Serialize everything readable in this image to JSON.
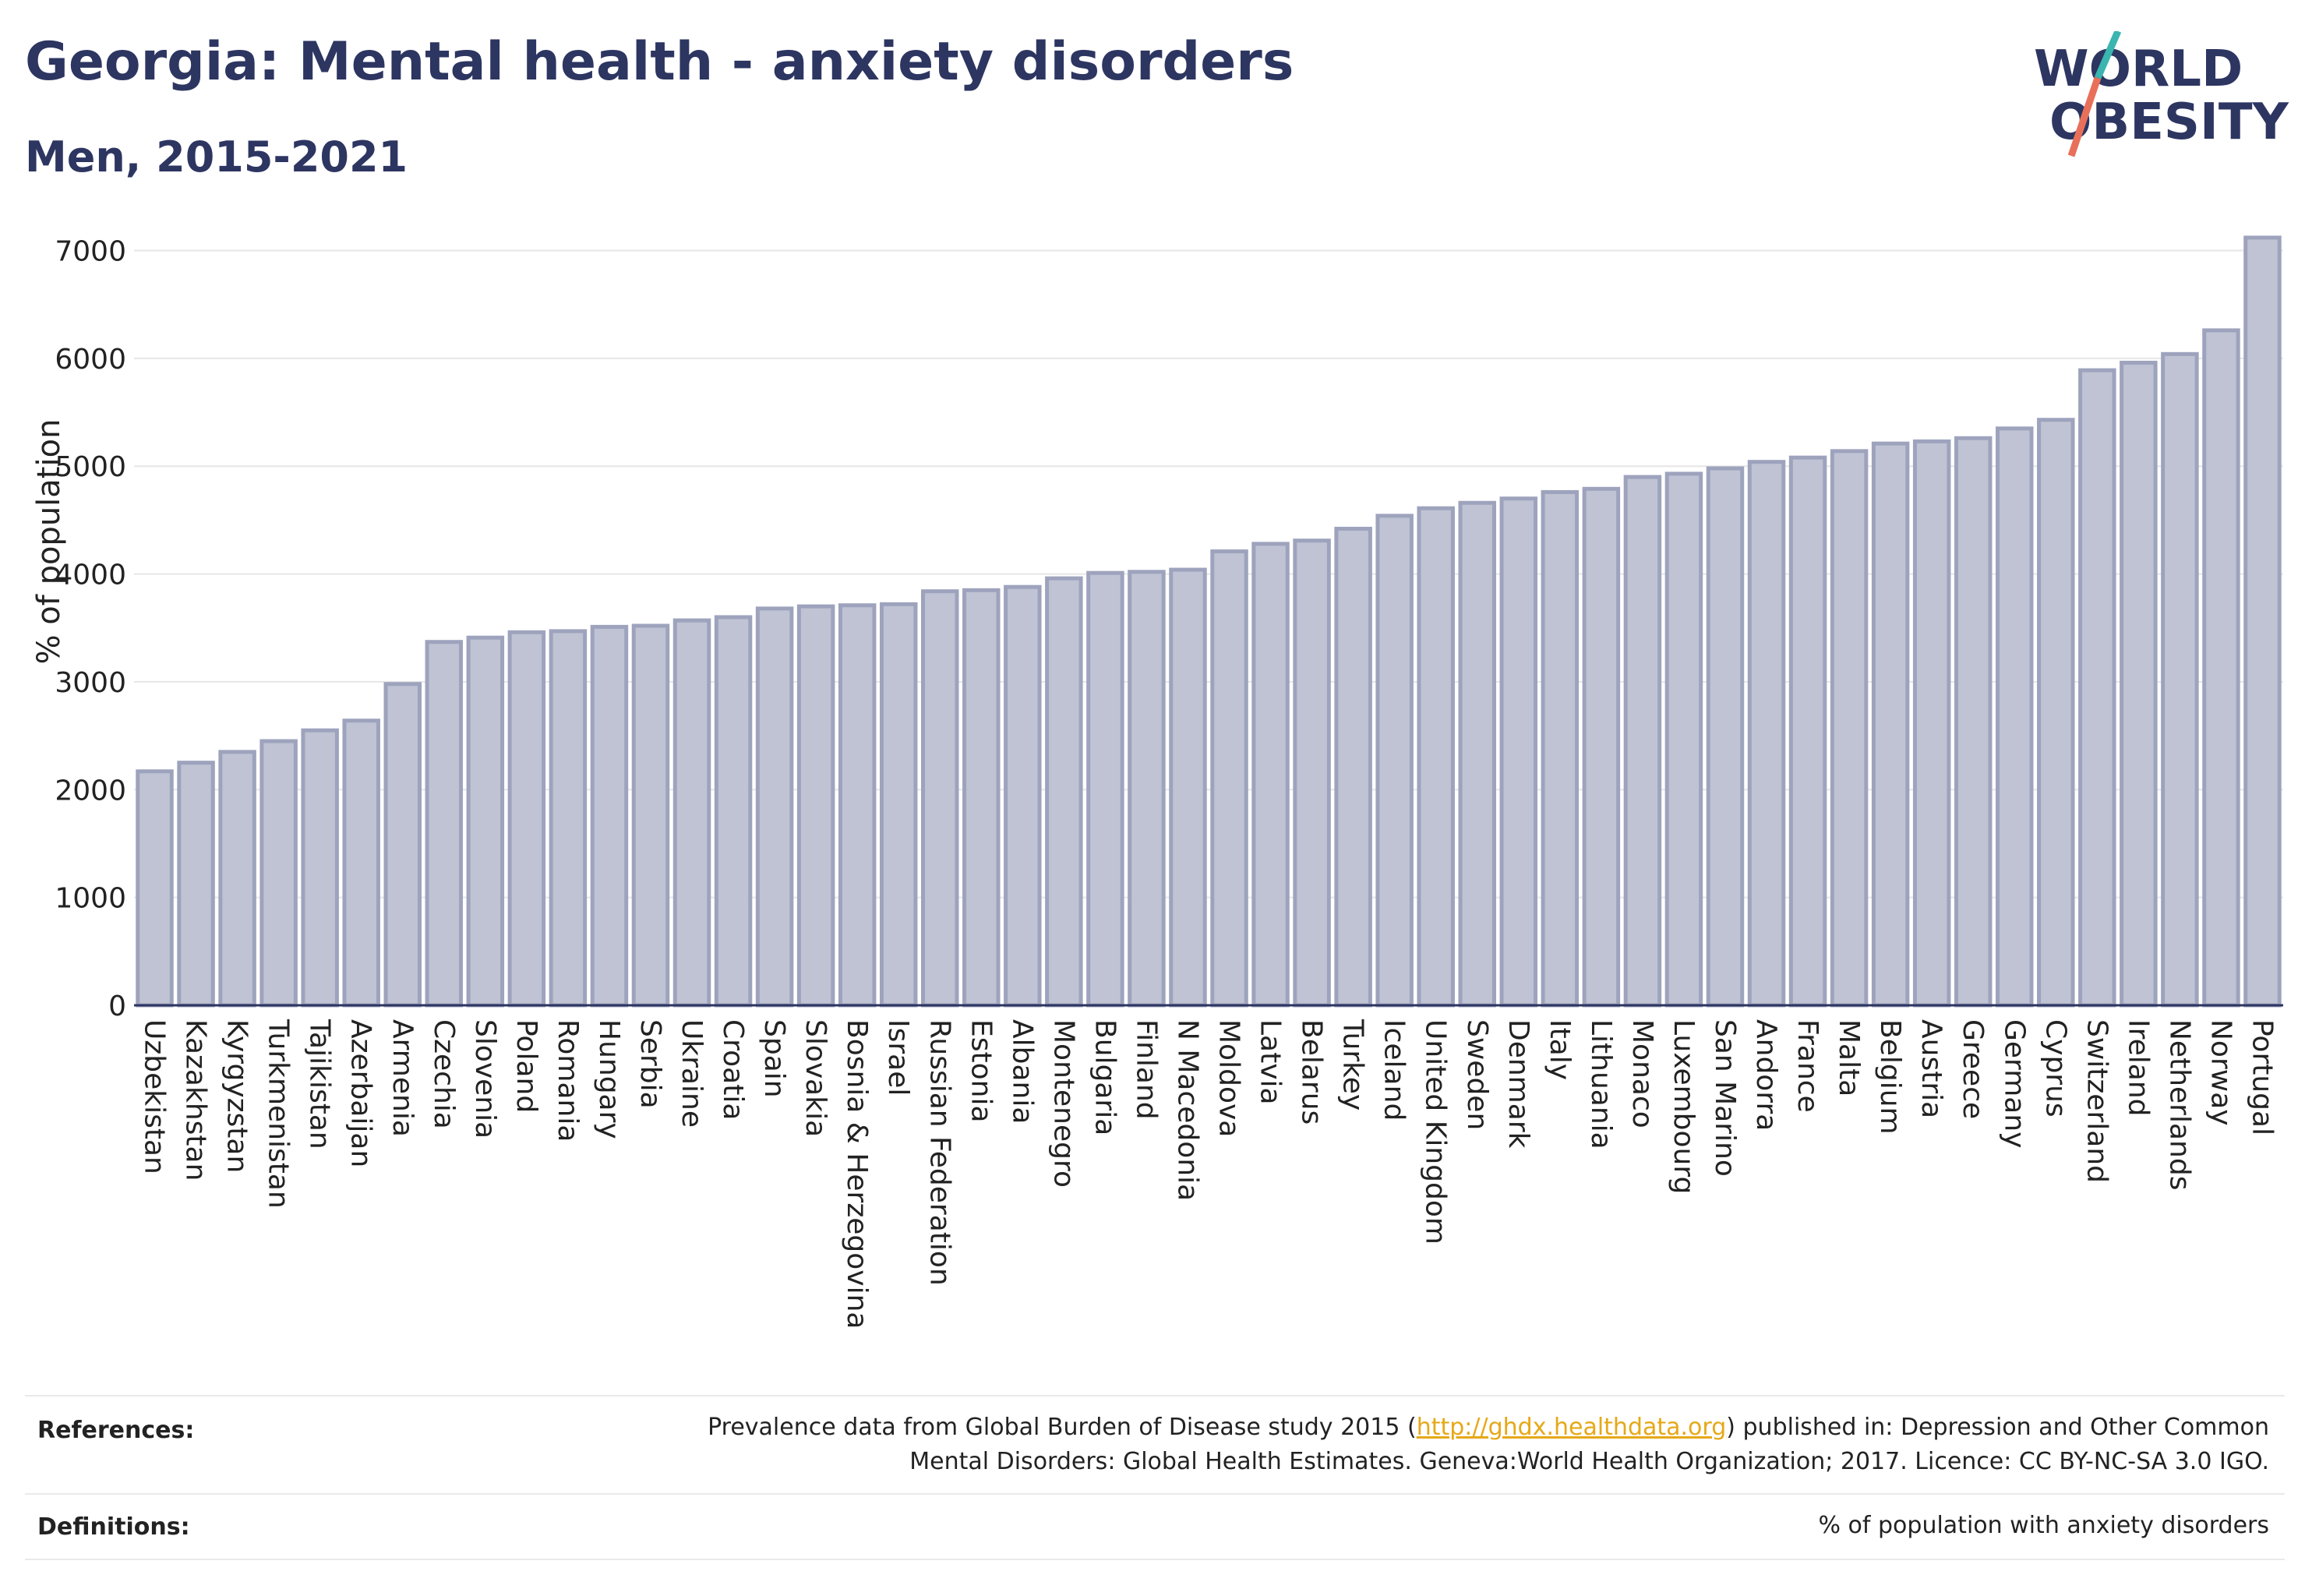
{
  "header": {
    "title": "Georgia: Mental health - anxiety disorders",
    "subtitle": "Men, 2015-2021"
  },
  "logo": {
    "line1": "WORLD",
    "line2": "OBESITY",
    "colors": {
      "text": "#2d3561",
      "slash_teal": "#3ab5b0",
      "slash_coral": "#e8705a"
    }
  },
  "footer": {
    "references_label": "References:",
    "references_text_before": "Prevalence data from Global Burden of Disease study 2015 (",
    "references_link": "http://ghdx.healthdata.org",
    "references_text_after": ") published in: Depression and Other Common",
    "references_line2": "Mental Disorders: Global Health Estimates. Geneva:World Health Organization; 2017. Licence: CC BY-NC-SA 3.0 IGO.",
    "definitions_label": "Definitions:",
    "definitions_text": "% of population with anxiety disorders"
  },
  "chart_data": {
    "type": "bar",
    "ylabel": "% of population",
    "ylim": [
      0,
      7300
    ],
    "yticks": [
      0,
      1000,
      2000,
      3000,
      4000,
      5000,
      6000,
      7000
    ],
    "grid": true,
    "bar_color": "#bfc3d4",
    "bar_edge_color": "#9ea3bd",
    "categories": [
      "Uzbekistan",
      "Kazakhstan",
      "Kyrgyzstan",
      "Turkmenistan",
      "Tajikistan",
      "Azerbaijan",
      "Armenia",
      "Czechia",
      "Slovenia",
      "Poland",
      "Romania",
      "Hungary",
      "Serbia",
      "Ukraine",
      "Croatia",
      "Spain",
      "Slovakia",
      "Bosnia & Herzegovina",
      "Israel",
      "Russian Federation",
      "Estonia",
      "Albania",
      "Montenegro",
      "Bulgaria",
      "Finland",
      "N Macedonia",
      "Moldova",
      "Latvia",
      "Belarus",
      "Turkey",
      "Iceland",
      "United Kingdom",
      "Sweden",
      "Denmark",
      "Italy",
      "Lithuania",
      "Monaco",
      "Luxembourg",
      "San Marino",
      "Andorra",
      "France",
      "Malta",
      "Belgium",
      "Austria",
      "Greece",
      "Germany",
      "Cyprus",
      "Switzerland",
      "Ireland",
      "Netherlands",
      "Norway",
      "Portugal"
    ],
    "values": [
      2170,
      2250,
      2350,
      2450,
      2550,
      2640,
      2980,
      3370,
      3410,
      3460,
      3470,
      3510,
      3520,
      3570,
      3600,
      3680,
      3700,
      3710,
      3720,
      3840,
      3850,
      3880,
      3960,
      4010,
      4020,
      4040,
      4210,
      4280,
      4310,
      4420,
      4540,
      4610,
      4660,
      4700,
      4760,
      4790,
      4900,
      4930,
      4980,
      5040,
      5080,
      5140,
      5210,
      5230,
      5260,
      5350,
      5430,
      5890,
      5960,
      6040,
      6260,
      7120
    ]
  }
}
